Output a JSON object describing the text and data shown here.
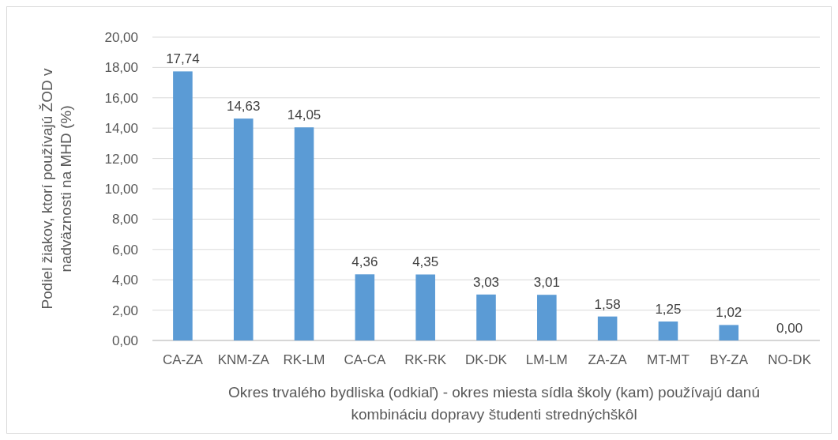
{
  "chart_data": {
    "type": "bar",
    "categories": [
      "CA-ZA",
      "KNM-ZA",
      "RK-LM",
      "CA-CA",
      "RK-RK",
      "DK-DK",
      "LM-LM",
      "ZA-ZA",
      "MT-MT",
      "BY-ZA",
      "NO-DK"
    ],
    "values": [
      17.74,
      14.63,
      14.05,
      4.36,
      4.35,
      3.03,
      3.01,
      1.58,
      1.25,
      1.02,
      0
    ],
    "value_labels": [
      "17,74",
      "14,63",
      "14,05",
      "4,36",
      "4,35",
      "3,03",
      "3,01",
      "1,58",
      "1,25",
      "1,02",
      "0,00"
    ],
    "color": "#5b9bd5",
    "ylim": [
      0,
      20
    ],
    "yticks": [
      {
        "value": 0,
        "label": "0,00"
      },
      {
        "value": 2,
        "label": "2,00"
      },
      {
        "value": 4,
        "label": "4,00"
      },
      {
        "value": 6,
        "label": "6,00"
      },
      {
        "value": 8,
        "label": "8,00"
      },
      {
        "value": 10,
        "label": "10,00"
      },
      {
        "value": 12,
        "label": "12,00"
      },
      {
        "value": 14,
        "label": "14,00"
      },
      {
        "value": 16,
        "label": "16,00"
      },
      {
        "value": 18,
        "label": "18,00"
      },
      {
        "value": 20,
        "label": "20,00"
      }
    ],
    "grid": "y",
    "ylabel": "Podiel žiakov,  ktorí používajú ŽOD v\nnadväznosti na MHD (%)",
    "xlabel": "Okres trvalého bydliska (odkiaľ) - okres miesta sídla školy (kam) používajú danú\nkombináciu dopravy študenti strednýchškôl"
  }
}
